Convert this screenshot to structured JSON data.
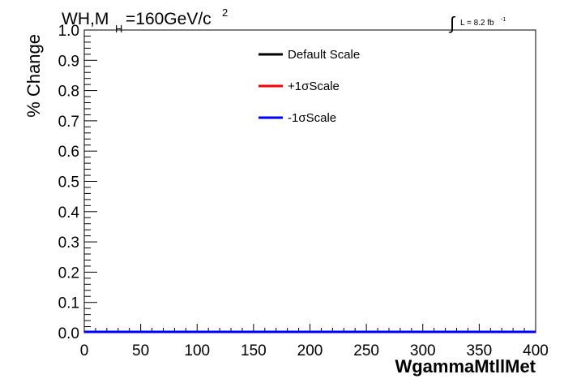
{
  "chart_data": {
    "type": "line",
    "title_main": "WH,M",
    "title_sub": "H",
    "title_rest": "=160GeV/c",
    "title_sup": "2",
    "lumi_integral": "∫",
    "lumi_text": "L = 8.2 fb",
    "lumi_sup": "-1",
    "xlabel": "WgammaMtllMet",
    "ylabel": "% Change",
    "xlim": [
      0,
      400
    ],
    "ylim": [
      0,
      1.0
    ],
    "x_ticks": [
      "0",
      "50",
      "100",
      "150",
      "200",
      "250",
      "300",
      "350",
      "400"
    ],
    "y_ticks": [
      "0.0",
      "0.1",
      "0.2",
      "0.3",
      "0.4",
      "0.5",
      "0.6",
      "0.7",
      "0.8",
      "0.9",
      "1.0"
    ],
    "legend_position": "top-center",
    "series": [
      {
        "name": "Default Scale",
        "color": "#000000",
        "x": [
          0,
          400
        ],
        "y": [
          0,
          0
        ]
      },
      {
        "name": "+1σScale",
        "color": "#ff0000",
        "x": [
          0,
          400
        ],
        "y": [
          0,
          0
        ]
      },
      {
        "name": "-1σScale",
        "color": "#0000ff",
        "x": [
          0,
          400
        ],
        "y": [
          0,
          0
        ]
      }
    ]
  }
}
